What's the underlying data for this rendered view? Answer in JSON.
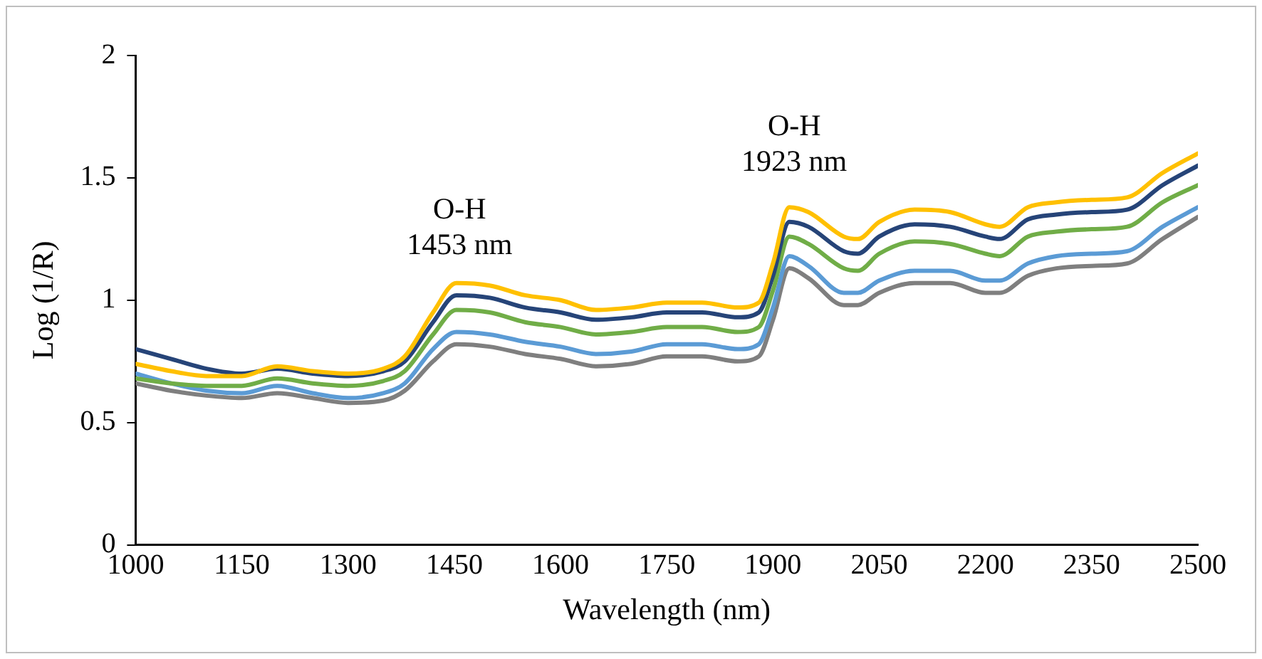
{
  "chart_data": {
    "type": "line",
    "xlabel": "Wavelength (nm)",
    "ylabel": "Log (1/R)",
    "x": [
      1000,
      1050,
      1100,
      1150,
      1200,
      1250,
      1300,
      1350,
      1380,
      1420,
      1453,
      1500,
      1550,
      1600,
      1650,
      1700,
      1750,
      1800,
      1850,
      1880,
      1900,
      1923,
      1950,
      2000,
      2020,
      2050,
      2100,
      2150,
      2200,
      2220,
      2260,
      2300,
      2350,
      2400,
      2450,
      2500
    ],
    "series": [
      {
        "color": "#ffc000",
        "values": [
          0.74,
          0.71,
          0.69,
          0.69,
          0.73,
          0.71,
          0.7,
          0.72,
          0.77,
          0.95,
          1.07,
          1.06,
          1.02,
          1.0,
          0.96,
          0.97,
          0.99,
          0.99,
          0.97,
          0.99,
          1.15,
          1.38,
          1.36,
          1.26,
          1.25,
          1.32,
          1.37,
          1.36,
          1.31,
          1.3,
          1.38,
          1.4,
          1.41,
          1.42,
          1.52,
          1.6
        ]
      },
      {
        "color": "#264478",
        "values": [
          0.8,
          0.76,
          0.72,
          0.7,
          0.72,
          0.7,
          0.69,
          0.71,
          0.75,
          0.91,
          1.02,
          1.01,
          0.97,
          0.95,
          0.92,
          0.93,
          0.95,
          0.95,
          0.93,
          0.95,
          1.1,
          1.32,
          1.3,
          1.2,
          1.19,
          1.26,
          1.31,
          1.3,
          1.26,
          1.25,
          1.33,
          1.35,
          1.36,
          1.37,
          1.47,
          1.55
        ]
      },
      {
        "color": "#70ad47",
        "values": [
          0.68,
          0.66,
          0.65,
          0.65,
          0.68,
          0.66,
          0.65,
          0.67,
          0.71,
          0.86,
          0.96,
          0.95,
          0.91,
          0.89,
          0.86,
          0.87,
          0.89,
          0.89,
          0.87,
          0.89,
          1.04,
          1.26,
          1.23,
          1.13,
          1.12,
          1.19,
          1.24,
          1.23,
          1.19,
          1.18,
          1.26,
          1.28,
          1.29,
          1.3,
          1.4,
          1.47
        ]
      },
      {
        "color": "#5b9bd5",
        "values": [
          0.7,
          0.66,
          0.63,
          0.62,
          0.65,
          0.62,
          0.6,
          0.62,
          0.66,
          0.8,
          0.87,
          0.86,
          0.83,
          0.81,
          0.78,
          0.79,
          0.82,
          0.82,
          0.8,
          0.82,
          0.97,
          1.18,
          1.14,
          1.03,
          1.03,
          1.08,
          1.12,
          1.12,
          1.08,
          1.08,
          1.15,
          1.18,
          1.19,
          1.2,
          1.3,
          1.38
        ]
      },
      {
        "color": "#7f7f7f",
        "values": [
          0.66,
          0.63,
          0.61,
          0.6,
          0.62,
          0.6,
          0.58,
          0.59,
          0.63,
          0.75,
          0.82,
          0.81,
          0.78,
          0.76,
          0.73,
          0.74,
          0.77,
          0.77,
          0.75,
          0.77,
          0.92,
          1.13,
          1.09,
          0.98,
          0.98,
          1.03,
          1.07,
          1.07,
          1.03,
          1.03,
          1.1,
          1.13,
          1.14,
          1.15,
          1.25,
          1.34
        ]
      }
    ],
    "xlim": [
      1000,
      2500
    ],
    "xticks": [
      1000,
      1150,
      1300,
      1450,
      1600,
      1750,
      1900,
      2050,
      2200,
      2350,
      2500
    ],
    "ylim": [
      0,
      2
    ],
    "yticks": [
      0,
      0.5,
      1,
      1.5,
      2
    ],
    "annotations": [
      "O-H\n1453 nm",
      "O-H\n1923 nm"
    ],
    "grid": false,
    "legend": false,
    "marker": "none",
    "line_style": "solid"
  }
}
